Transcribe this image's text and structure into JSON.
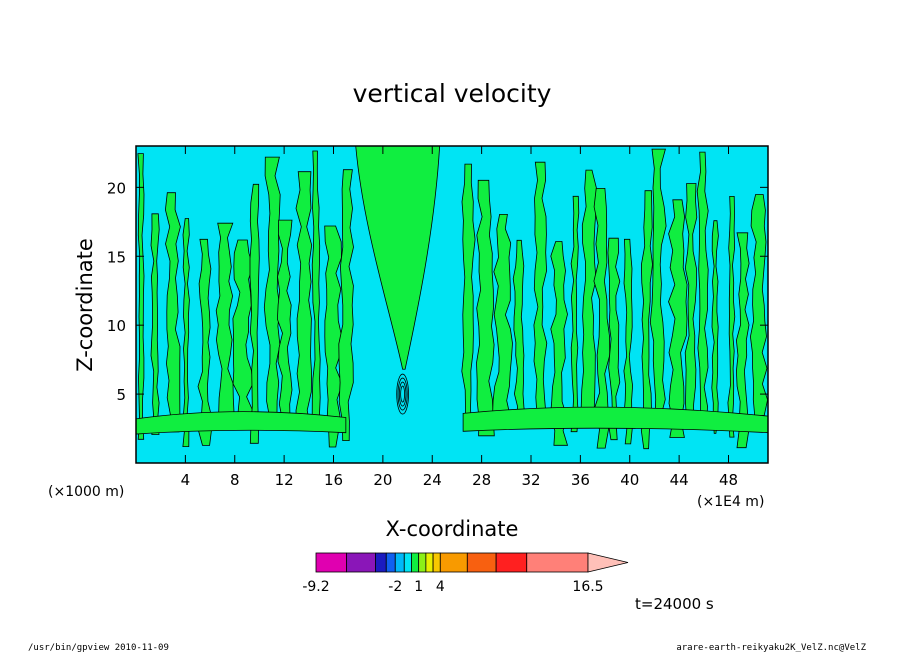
{
  "chart_data": {
    "type": "heatmap",
    "title": "vertical velocity",
    "xlabel": "X-coordinate",
    "ylabel": "Z-coordinate",
    "x_unit_left": "(×1000 m)",
    "x_unit_right": "(×1E4 m)",
    "xlim": [
      0,
      51.2
    ],
    "ylim": [
      0,
      23
    ],
    "xticks": [
      4,
      8,
      12,
      16,
      20,
      24,
      28,
      32,
      36,
      40,
      44,
      48
    ],
    "xtick_labels": [
      "4",
      "8",
      "12",
      "16",
      "20",
      "24",
      "28",
      "32",
      "36",
      "40",
      "44",
      "48"
    ],
    "yticks": [
      5,
      10,
      15,
      20
    ],
    "ytick_labels": [
      "5",
      "10",
      "15",
      "20"
    ],
    "colorbar": {
      "levels": [
        -9.2,
        -7,
        -5,
        -3,
        -2,
        -1,
        0,
        1,
        2,
        3,
        4,
        6,
        8,
        10,
        16.5
      ],
      "tick_values": [
        -9.2,
        -2,
        1,
        4,
        16.5
      ],
      "tick_labels": [
        "-9.2",
        "-2",
        "1",
        "4",
        "16.5"
      ],
      "colors": [
        "#e000b0",
        "#8a16b8",
        "#1b1bc0",
        "#1060f0",
        "#00b8f8",
        "#00e4f4",
        "#10ee40",
        "#8cf018",
        "#e8f000",
        "#f8c800",
        "#f89a00",
        "#f86010",
        "#ff2020",
        "#ff8078",
        "#ffc0b8"
      ]
    },
    "field_colors": {
      "background": "#00e4f4",
      "positive": "#10ee40",
      "contour": "#000000"
    }
  },
  "timestamp": "t=24000 s",
  "footer": {
    "left": "/usr/bin/gpview  2010-11-09",
    "right": "arare-earth-reikyaku2K_VelZ.nc@VelZ"
  }
}
